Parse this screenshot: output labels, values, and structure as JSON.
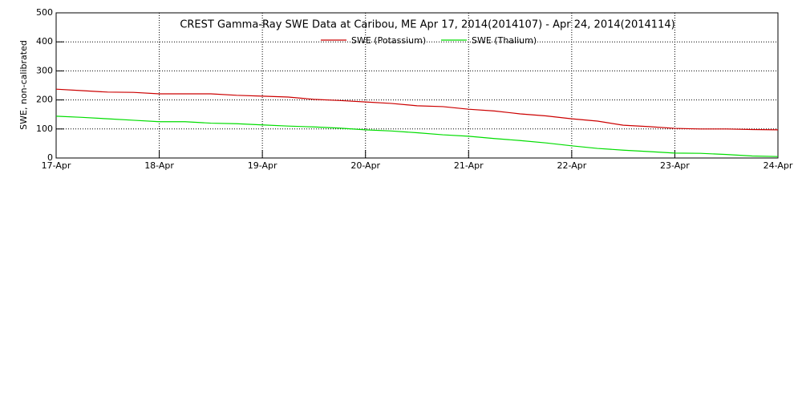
{
  "chart_data": {
    "type": "line",
    "title": "CREST Gamma-Ray SWE Data at Caribou, ME   Apr 17, 2014(2014107) - Apr 24, 2014(2014114)",
    "y_label": "SWE, non-calibrated",
    "x": [
      17,
      17.25,
      17.5,
      17.75,
      18,
      18.25,
      18.5,
      18.75,
      19,
      19.25,
      19.5,
      19.75,
      20,
      20.25,
      20.5,
      20.75,
      21,
      21.25,
      21.5,
      21.75,
      22,
      22.25,
      22.5,
      22.75,
      23,
      23.25,
      23.5,
      23.75,
      24
    ],
    "series": [
      {
        "name": "SWE (Potassium)",
        "color": "#cc0000",
        "values": [
          237,
          232,
          227,
          226,
          221,
          221,
          221,
          216,
          213,
          210,
          202,
          198,
          193,
          188,
          180,
          177,
          168,
          162,
          152,
          145,
          135,
          127,
          113,
          108,
          102,
          100,
          100,
          98,
          97
        ]
      },
      {
        "name": "SWE (Thalium)",
        "color": "#00dd00",
        "values": [
          144,
          140,
          135,
          130,
          125,
          125,
          120,
          118,
          114,
          110,
          107,
          103,
          97,
          93,
          87,
          80,
          75,
          67,
          60,
          52,
          42,
          33,
          27,
          22,
          17,
          16,
          12,
          7,
          5
        ]
      }
    ],
    "xlim": [
      17,
      24
    ],
    "xticks": [
      {
        "value": 17,
        "label": "17-Apr"
      },
      {
        "value": 18,
        "label": "18-Apr"
      },
      {
        "value": 19,
        "label": "19-Apr"
      },
      {
        "value": 20,
        "label": "20-Apr"
      },
      {
        "value": 21,
        "label": "21-Apr"
      },
      {
        "value": 22,
        "label": "22-Apr"
      },
      {
        "value": 23,
        "label": "23-Apr"
      },
      {
        "value": 24,
        "label": "24-Apr"
      }
    ],
    "ylim": [
      0,
      500
    ],
    "yticks": [
      0,
      100,
      200,
      300,
      400,
      500
    ],
    "grid": true
  }
}
